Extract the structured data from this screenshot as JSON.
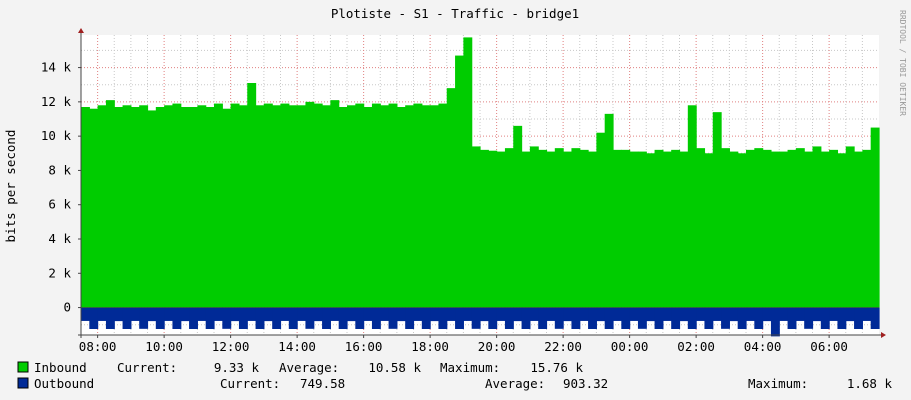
{
  "chart_data": {
    "type": "area",
    "title": "Plotiste - S1 - Traffic - bridge1",
    "ylabel": "bits per second",
    "xlabel": "",
    "watermark": "RRDTOOL / TOBI OETIKER",
    "ylim": [
      -1600,
      15900
    ],
    "y_ticks": [
      {
        "v": 0,
        "label": "0"
      },
      {
        "v": 2000,
        "label": "2 k"
      },
      {
        "v": 4000,
        "label": "4 k"
      },
      {
        "v": 6000,
        "label": "6 k"
      },
      {
        "v": 8000,
        "label": "8 k"
      },
      {
        "v": 10000,
        "label": "10 k"
      },
      {
        "v": 12000,
        "label": "12 k"
      },
      {
        "v": 14000,
        "label": "14 k"
      }
    ],
    "x_range": [
      "07:30",
      "07:30 (+1 day)"
    ],
    "x_ticks": [
      "08:00",
      "10:00",
      "12:00",
      "14:00",
      "16:00",
      "18:00",
      "20:00",
      "22:00",
      "00:00",
      "02:00",
      "04:00",
      "06:00"
    ],
    "sample_interval_minutes": 15,
    "grid": true,
    "colors": {
      "inbound": "#00cc00",
      "outbound": "#002a97",
      "major_grid": "#e08080",
      "minor_grid": "#c8c8c8",
      "canvas": "#ffffff",
      "background": "#f3f3f3"
    },
    "series": [
      {
        "name": "Inbound",
        "direction": "positive",
        "values": [
          11700,
          11600,
          11800,
          12100,
          11700,
          11800,
          11700,
          11800,
          11500,
          11700,
          11800,
          11900,
          11700,
          11700,
          11800,
          11700,
          11900,
          11600,
          11900,
          11800,
          13100,
          11800,
          11900,
          11800,
          11900,
          11800,
          11800,
          12000,
          11900,
          11800,
          12100,
          11700,
          11800,
          11900,
          11700,
          11900,
          11800,
          11900,
          11700,
          11800,
          11900,
          11800,
          11800,
          11900,
          12800,
          14700,
          15760,
          9400,
          9200,
          9150,
          9100,
          9300,
          10600,
          9100,
          9400,
          9200,
          9100,
          9300,
          9100,
          9300,
          9200,
          9100,
          10200,
          11300,
          9200,
          9200,
          9100,
          9100,
          9000,
          9200,
          9100,
          9200,
          9100,
          11800,
          9300,
          9000,
          11400,
          9300,
          9100,
          9000,
          9200,
          9300,
          9200,
          9100,
          9100,
          9200,
          9300,
          9100,
          9400,
          9100,
          9200,
          9000,
          9400,
          9100,
          9200,
          10500,
          9330
        ]
      },
      {
        "name": "Outbound",
        "direction": "negative",
        "values": [
          780,
          1250,
          780,
          1250,
          790,
          1250,
          780,
          1240,
          790,
          1250,
          780,
          1250,
          790,
          1250,
          780,
          1250,
          780,
          1240,
          790,
          1250,
          780,
          1250,
          790,
          1250,
          780,
          1250,
          780,
          1240,
          790,
          1250,
          780,
          1250,
          790,
          1250,
          780,
          1250,
          780,
          1240,
          790,
          1250,
          780,
          1250,
          790,
          1250,
          780,
          1250,
          780,
          1240,
          790,
          1250,
          780,
          1250,
          790,
          1250,
          780,
          1250,
          780,
          1240,
          790,
          1250,
          780,
          1250,
          790,
          1250,
          780,
          1250,
          780,
          1240,
          790,
          1250,
          780,
          1250,
          790,
          1250,
          780,
          1250,
          780,
          1240,
          790,
          1250,
          780,
          1250,
          790,
          1680,
          780,
          1250,
          780,
          1240,
          790,
          1250,
          780,
          1250,
          790,
          1250,
          780,
          1250,
          750
        ]
      }
    ],
    "legend": [
      {
        "name": "Inbound",
        "current_label": "Current:",
        "current": "9.33 k",
        "average_label": "Average:",
        "average": "10.58 k",
        "maximum_label": "Maximum:",
        "maximum": "15.76 k"
      },
      {
        "name": "Outbound",
        "current_label": "Current:",
        "current": "749.58",
        "average_label": "Average:",
        "average": "903.32",
        "maximum_label": "Maximum:",
        "maximum": "1.68 k"
      }
    ]
  }
}
